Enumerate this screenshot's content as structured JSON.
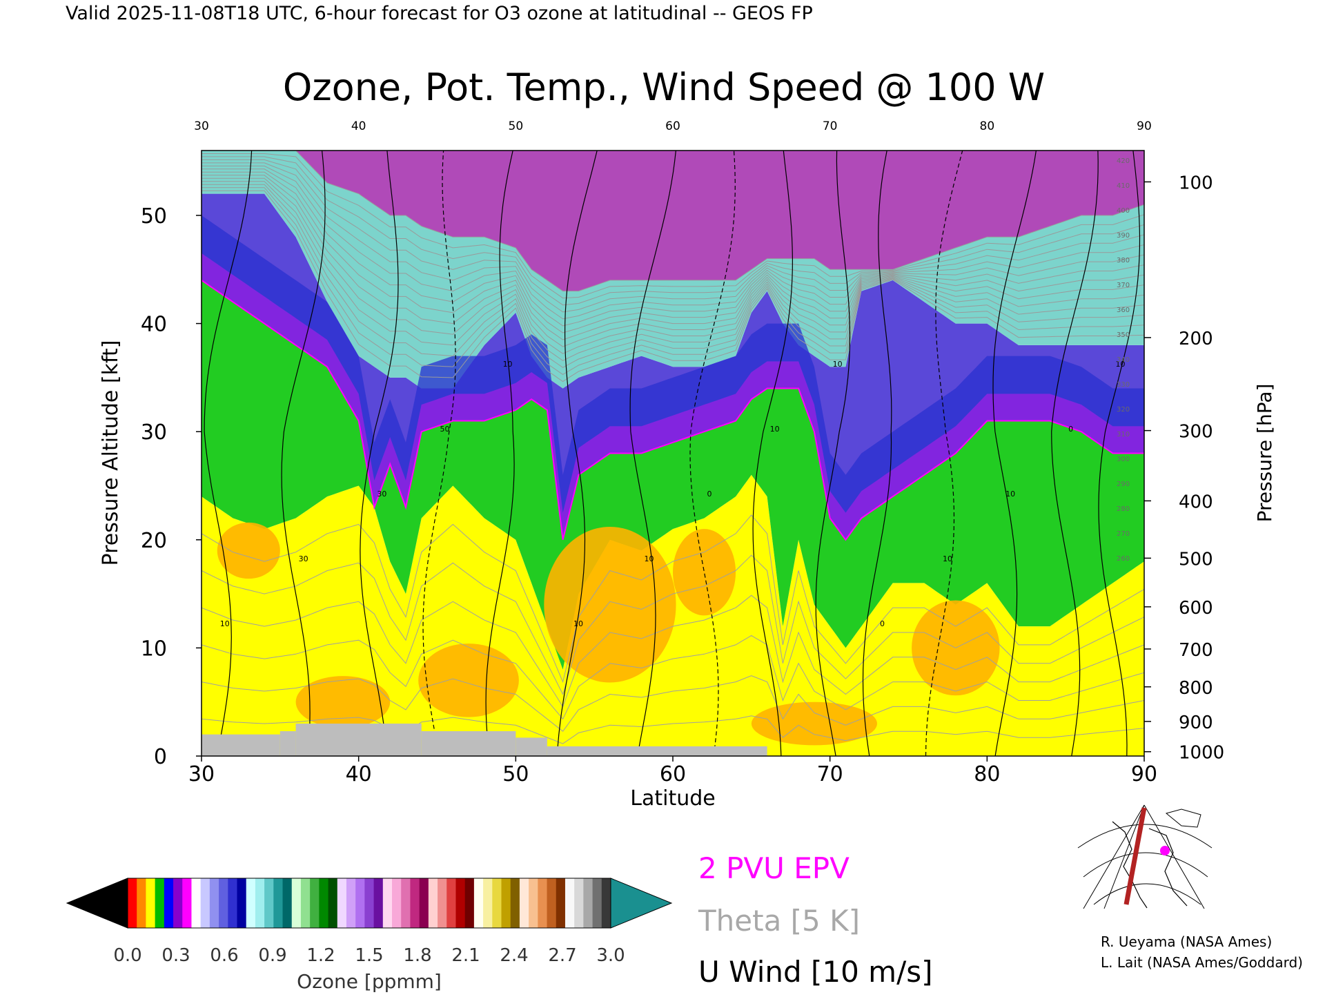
{
  "header": {
    "valid_line": "Valid 2025-11-08T18 UTC, 6-hour forecast for O3 ozone at latitudinal -- GEOS FP"
  },
  "chart_data": {
    "type": "heatmap",
    "title": "Ozone, Pot. Temp., Wind Speed @ 100 W",
    "xlabel": "Latitude",
    "ylabel": "Pressure Altitude [kft]",
    "ylabel_right": "Pressure [hPa]",
    "xlim": [
      30,
      90
    ],
    "ylim": [
      0,
      56
    ],
    "x_ticks": [
      30,
      40,
      50,
      60,
      70,
      80,
      90
    ],
    "y_ticks": [
      0,
      10,
      20,
      30,
      40,
      50
    ],
    "pressure_ticks": [
      {
        "label": "100",
        "alt_kft": 53.1
      },
      {
        "label": "200",
        "alt_kft": 38.7
      },
      {
        "label": "300",
        "alt_kft": 30.1
      },
      {
        "label": "400",
        "alt_kft": 23.6
      },
      {
        "label": "500",
        "alt_kft": 18.3
      },
      {
        "label": "600",
        "alt_kft": 13.8
      },
      {
        "label": "700",
        "alt_kft": 9.9
      },
      {
        "label": "800",
        "alt_kft": 6.4
      },
      {
        "label": "900",
        "alt_kft": 3.2
      },
      {
        "label": "1000",
        "alt_kft": 0.4
      }
    ],
    "ozone_boundaries": {
      "lat": [
        30,
        32,
        34,
        36,
        38,
        40,
        41,
        42,
        43,
        44,
        46,
        48,
        50,
        51,
        52,
        53,
        54,
        56,
        58,
        60,
        62,
        64,
        65,
        66,
        67,
        68,
        69,
        70,
        71,
        72,
        74,
        76,
        78,
        80,
        82,
        84,
        86,
        88,
        90
      ],
      "low_trop_top_kft": [
        24,
        22,
        21,
        22,
        24,
        25,
        23,
        18,
        15,
        22,
        25,
        22,
        20,
        16,
        12,
        8,
        15,
        20,
        19,
        21,
        22,
        24,
        26,
        24,
        12,
        20,
        14,
        12,
        10,
        12,
        16,
        16,
        14,
        16,
        12,
        12,
        14,
        16,
        18
      ],
      "tropopause_kft": [
        44,
        42,
        40,
        38,
        36,
        31,
        23,
        27,
        23,
        30,
        31,
        31,
        32,
        33,
        32,
        20,
        26,
        28,
        28,
        29,
        30,
        31,
        33,
        34,
        34,
        34,
        30,
        22,
        20,
        22,
        24,
        26,
        28,
        31,
        31,
        31,
        30,
        28,
        28
      ],
      "ozonopause_kft": [
        52,
        52,
        52,
        48,
        42,
        37,
        36,
        35,
        35,
        34,
        34,
        38,
        41,
        37,
        35,
        34,
        35,
        36,
        37,
        36,
        36,
        37,
        41,
        43,
        40,
        38,
        37,
        36,
        36,
        43,
        44,
        42,
        40,
        40,
        38,
        38,
        38,
        38,
        38
      ],
      "strat_high_kft": [
        56,
        56,
        56,
        56,
        53,
        52,
        51,
        50,
        50,
        49,
        48,
        48,
        47,
        45,
        44,
        43,
        43,
        44,
        44,
        44,
        44,
        44,
        45,
        46,
        46,
        46,
        46,
        45,
        45,
        45,
        45,
        46,
        47,
        48,
        48,
        49,
        50,
        50,
        51
      ]
    },
    "wind_contour_labels": [
      "10",
      "30",
      "30",
      "50",
      "10",
      "10",
      "10",
      "0",
      "10",
      "10",
      "0",
      "10",
      "10",
      "0",
      "10"
    ],
    "theta_labels": [
      "420",
      "410",
      "400",
      "390",
      "380",
      "370",
      "360",
      "350",
      "340",
      "330",
      "320",
      "310",
      "300",
      "290",
      "280",
      "270",
      "260"
    ],
    "surface_terrain": [
      {
        "from": 30,
        "to": 35,
        "alt_kft": 2.0
      },
      {
        "from": 35,
        "to": 36,
        "alt_kft": 2.3
      },
      {
        "from": 36,
        "to": 44,
        "alt_kft": 3.0
      },
      {
        "from": 44,
        "to": 50,
        "alt_kft": 2.3
      },
      {
        "from": 50,
        "to": 52,
        "alt_kft": 1.7
      },
      {
        "from": 52,
        "to": 66,
        "alt_kft": 0.9
      }
    ],
    "colorbar": {
      "label": "Ozone [ppmm]",
      "min": 0.0,
      "max": 3.0,
      "ticks": [
        "0.0",
        "0.3",
        "0.6",
        "0.9",
        "1.2",
        "1.5",
        "1.8",
        "2.1",
        "2.4",
        "2.7",
        "3.0"
      ],
      "segment_colors": [
        "#ff0000",
        "#ff8800",
        "#ffff00",
        "#00bb00",
        "#0000ff",
        "#8800cc",
        "#ff00ff",
        "#ffffff",
        "#c8c8ff",
        "#9090f0",
        "#6060e0",
        "#3030d0",
        "#0000a0",
        "#d0ffff",
        "#a0eeee",
        "#60c8c8",
        "#209898",
        "#006868",
        "#d8ffd8",
        "#90e090",
        "#40b040",
        "#008800",
        "#005000",
        "#f0d8ff",
        "#d0a0f8",
        "#b070f0",
        "#8a40d0",
        "#6a10a0",
        "#ffd8f0",
        "#f8a8d8",
        "#e070b0",
        "#c02880",
        "#8a0050",
        "#ffd0d0",
        "#f09090",
        "#e04040",
        "#b00000",
        "#700000",
        "#fffff0",
        "#f8f0a0",
        "#e8d840",
        "#c0a000",
        "#806000",
        "#ffe8d8",
        "#f8c090",
        "#e89050",
        "#c06020",
        "#803000",
        "#f8f8f8",
        "#d8d8d8",
        "#a8a8a8",
        "#707070",
        "#383838"
      ],
      "under_color": "#000000",
      "over_color": "#1a9090"
    },
    "legend": [
      {
        "label": "2 PVU EPV",
        "color": "#ff00ff"
      },
      {
        "label": "Theta [5 K]",
        "color": "#a8a8a8"
      },
      {
        "label": "U Wind [10 m/s]",
        "color": "#000000"
      }
    ]
  },
  "credits": {
    "line1": "R. Ueyama (NASA Ames)",
    "line2": "L. Lait (NASA Ames/Goddard)"
  }
}
